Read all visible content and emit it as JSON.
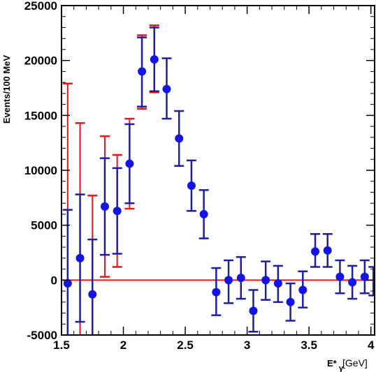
{
  "chart_data": {
    "type": "scatter",
    "title": "",
    "ylabel": "Events/100 MeV",
    "xlabel_main": "E*",
    "xlabel_sub": "γ",
    "xlabel_unit": "[GeV]",
    "xlim": [
      1.5,
      4.03
    ],
    "ylim": [
      -5000,
      25000
    ],
    "x_ticks": [
      1.5,
      2,
      2.5,
      3,
      3.5,
      4
    ],
    "x_tick_labels": [
      "1.5",
      "2",
      "2.5",
      "3",
      "3.5",
      "4"
    ],
    "y_ticks": [
      -5000,
      0,
      5000,
      10000,
      15000,
      20000,
      25000
    ],
    "y_tick_labels": [
      "-5000",
      "0",
      "5000",
      "10000",
      "15000",
      "20000",
      "25000"
    ],
    "reference_line": {
      "y": 0,
      "color": "#e8141e"
    },
    "colors": {
      "points": "#1414e6",
      "stat_error": "#1e1ea0",
      "syst_error": "#e8141e",
      "axis": "#000000"
    },
    "points": [
      {
        "x": 1.55,
        "y": -300,
        "stat": [
          -5000,
          6400
        ],
        "syst": [
          -5000,
          17900
        ]
      },
      {
        "x": 1.65,
        "y": 2000,
        "stat": [
          -3800,
          7800
        ],
        "syst": [
          -5000,
          14300
        ]
      },
      {
        "x": 1.75,
        "y": -1300,
        "stat": [
          -5000,
          3700
        ],
        "syst": [
          -5000,
          7700
        ]
      },
      {
        "x": 1.85,
        "y": 6700,
        "stat": [
          2300,
          11100
        ],
        "syst": [
          300,
          13100
        ]
      },
      {
        "x": 1.95,
        "y": 6300,
        "stat": [
          2400,
          10200
        ],
        "syst": [
          1200,
          11400
        ]
      },
      {
        "x": 2.05,
        "y": 10600,
        "stat": [
          7000,
          14200
        ],
        "syst": [
          6500,
          14700
        ]
      },
      {
        "x": 2.15,
        "y": 19000,
        "stat": [
          15800,
          22100
        ],
        "syst": [
          15600,
          22300
        ]
      },
      {
        "x": 2.25,
        "y": 20100,
        "stat": [
          17200,
          23000
        ],
        "syst": [
          17100,
          23200
        ]
      },
      {
        "x": 2.35,
        "y": 17400,
        "stat": [
          14700,
          20200
        ],
        "syst": [
          14700,
          20200
        ]
      },
      {
        "x": 2.45,
        "y": 12900,
        "stat": [
          10400,
          15400
        ],
        "syst": [
          10400,
          15400
        ]
      },
      {
        "x": 2.55,
        "y": 8600,
        "stat": [
          6300,
          10900
        ],
        "syst": [
          6300,
          10900
        ]
      },
      {
        "x": 2.65,
        "y": 6000,
        "stat": [
          3800,
          8200
        ],
        "syst": [
          3800,
          8200
        ]
      },
      {
        "x": 2.75,
        "y": -1100,
        "stat": [
          -3200,
          1100
        ],
        "syst": [
          -3200,
          1100
        ]
      },
      {
        "x": 2.85,
        "y": 0,
        "stat": [
          -2100,
          1800
        ],
        "syst": [
          -2100,
          1800
        ]
      },
      {
        "x": 2.95,
        "y": 200,
        "stat": [
          -1700,
          2100
        ],
        "syst": [
          -1700,
          2100
        ]
      },
      {
        "x": 3.05,
        "y": -2800,
        "stat": [
          -4700,
          -900
        ],
        "syst": [
          -4700,
          -900
        ]
      },
      {
        "x": 3.15,
        "y": 0,
        "stat": [
          -1800,
          1700
        ],
        "syst": [
          -1800,
          1700
        ]
      },
      {
        "x": 3.25,
        "y": -300,
        "stat": [
          -2000,
          1300
        ],
        "syst": [
          -2000,
          1300
        ]
      },
      {
        "x": 3.35,
        "y": -2000,
        "stat": [
          -3700,
          -300
        ],
        "syst": [
          -3700,
          -300
        ]
      },
      {
        "x": 3.45,
        "y": -900,
        "stat": [
          -2500,
          800
        ],
        "syst": [
          -2500,
          800
        ]
      },
      {
        "x": 3.55,
        "y": 2600,
        "stat": [
          1200,
          4200
        ],
        "syst": [
          1200,
          4200
        ]
      },
      {
        "x": 3.65,
        "y": 2700,
        "stat": [
          1200,
          4200
        ],
        "syst": [
          1200,
          4200
        ]
      },
      {
        "x": 3.75,
        "y": 300,
        "stat": [
          -1200,
          1800
        ],
        "syst": [
          -1200,
          1800
        ]
      },
      {
        "x": 3.85,
        "y": -200,
        "stat": [
          -1700,
          1300
        ],
        "syst": [
          -1700,
          1300
        ]
      },
      {
        "x": 3.95,
        "y": 300,
        "stat": [
          -1200,
          1800
        ],
        "syst": [
          -1200,
          1800
        ]
      },
      {
        "x": 4.02,
        "y": null,
        "stat": [
          -1400,
          1200
        ],
        "syst": [
          -1400,
          1200
        ]
      }
    ]
  }
}
